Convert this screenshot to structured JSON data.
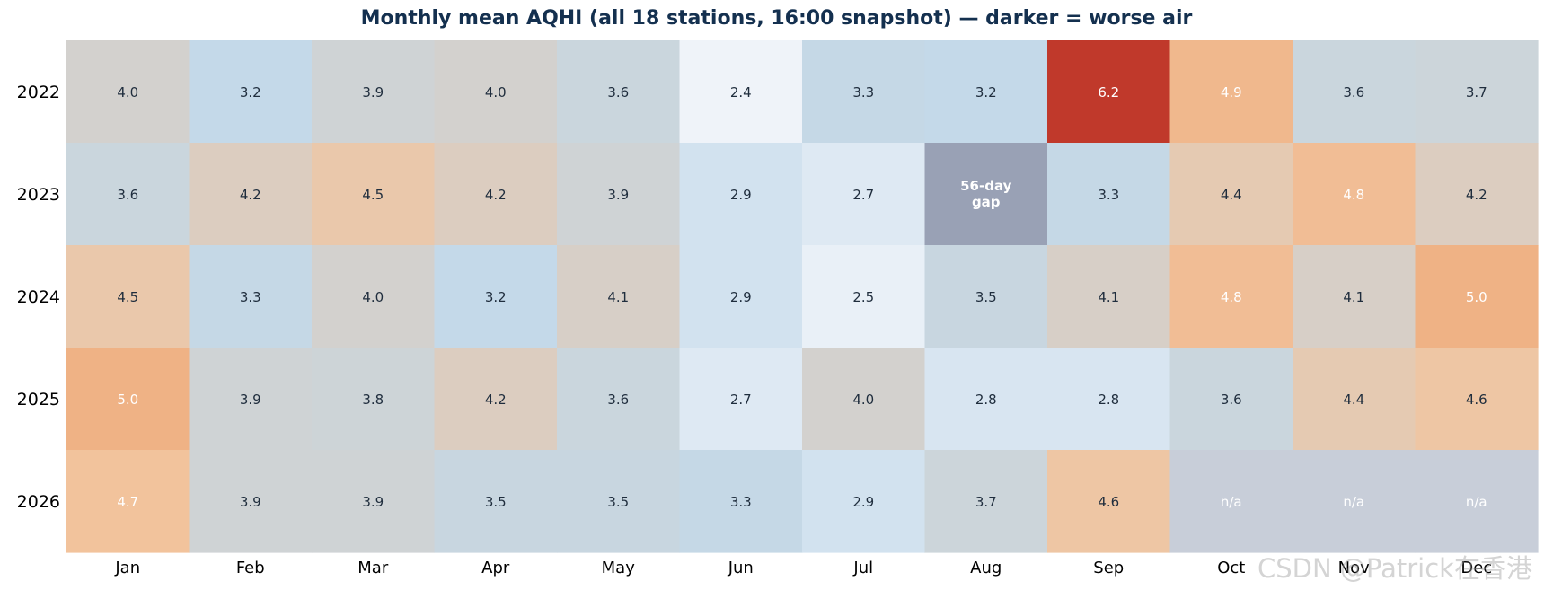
{
  "title": "Monthly mean AQHI (all 18 stations, 16:00 snapshot)  —  darker = worse air",
  "watermark": "CSDN @Patrick在香港",
  "chart_data": {
    "type": "heatmap",
    "title": "Monthly mean AQHI (all 18 stations, 16:00 snapshot)  —  darker = worse air",
    "columns": [
      "Jan",
      "Feb",
      "Mar",
      "Apr",
      "May",
      "Jun",
      "Jul",
      "Aug",
      "Sep",
      "Oct",
      "Nov",
      "Dec"
    ],
    "rows": [
      "2022",
      "2023",
      "2024",
      "2025",
      "2026"
    ],
    "values": [
      [
        4.0,
        3.2,
        3.9,
        4.0,
        3.6,
        2.4,
        3.3,
        3.2,
        6.2,
        4.9,
        3.6,
        3.7
      ],
      [
        3.6,
        4.2,
        4.5,
        4.2,
        3.9,
        2.9,
        2.7,
        null,
        3.3,
        4.4,
        4.8,
        4.2
      ],
      [
        4.5,
        3.3,
        4.0,
        3.2,
        4.1,
        2.9,
        2.5,
        3.5,
        4.1,
        4.8,
        4.1,
        5.0
      ],
      [
        5.0,
        3.9,
        3.8,
        4.2,
        3.6,
        2.7,
        4.0,
        2.8,
        2.8,
        3.6,
        4.4,
        4.6
      ],
      [
        4.7,
        3.9,
        3.9,
        3.5,
        3.5,
        3.3,
        2.9,
        3.7,
        4.6,
        null,
        null,
        null
      ]
    ],
    "special_cells": [
      {
        "row": 1,
        "col": 7,
        "text": "56-day gap",
        "color": "#99a1b5"
      }
    ],
    "missing_label": "n/a",
    "missing_color": "#c8ced9",
    "colorscale": {
      "low": 2.4,
      "high": 6.2,
      "stops": [
        "#eff3f9",
        "#c3d9ea",
        "#cfd3d4",
        "#f2c49e",
        "#ec9a62",
        "#c0392b"
      ]
    },
    "text_colors": {
      "dark": "#1f2d3d",
      "light": "#ffffff"
    }
  }
}
